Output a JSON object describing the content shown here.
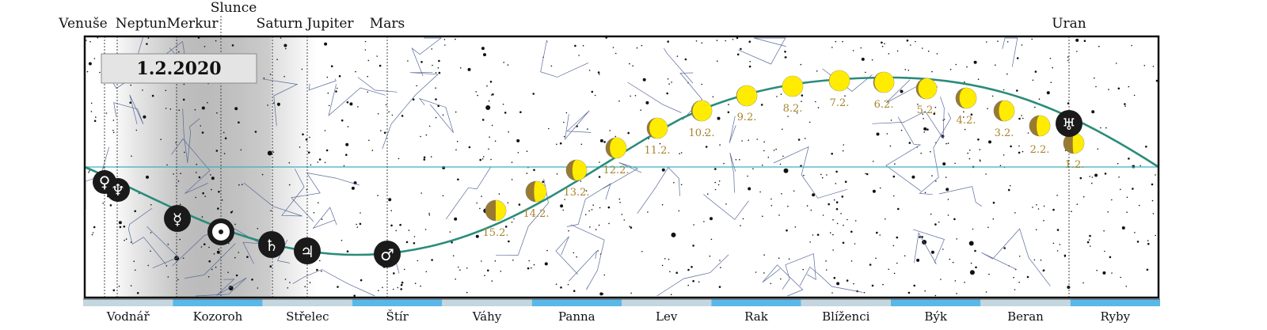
{
  "date": "1.2.2020",
  "colors": {
    "ecliptic": "#2a8c7a",
    "equator": "#3bb0c0",
    "moon_lit": "#ffec00",
    "moon_dark": "#9a7a2e",
    "date_text": "#a6842b",
    "zodiac_band_a": "#c4d6df",
    "zodiac_band_b": "#5ab8e8",
    "planet_fill": "#1a1a1a"
  },
  "planets": [
    {
      "name": "Venuše",
      "glyph": "♀"
    },
    {
      "name": "Neptun",
      "glyph": "♆"
    },
    {
      "name": "Merkur",
      "glyph": "☿"
    },
    {
      "name": "Slunce",
      "glyph": "☉"
    },
    {
      "name": "Saturn",
      "glyph": "♄"
    },
    {
      "name": "Jupiter",
      "glyph": "♃"
    },
    {
      "name": "Mars",
      "glyph": "♂"
    },
    {
      "name": "Uran",
      "glyph": "♅"
    }
  ],
  "moon_phases": [
    {
      "date": "1.2.",
      "illumination": 0.55
    },
    {
      "date": "2.2.",
      "illumination": 0.65
    },
    {
      "date": "3.2.",
      "illumination": 0.75
    },
    {
      "date": "4.2.",
      "illumination": 0.82
    },
    {
      "date": "5.2.",
      "illumination": 0.9
    },
    {
      "date": "6.2.",
      "illumination": 0.95
    },
    {
      "date": "7.2.",
      "illumination": 0.99
    },
    {
      "date": "8.2.",
      "illumination": 1.0
    },
    {
      "date": "9.2.",
      "illumination": 0.98
    },
    {
      "date": "10.2.",
      "illumination": 0.94
    },
    {
      "date": "11.2.",
      "illumination": 0.88
    },
    {
      "date": "12.2.",
      "illumination": 0.8
    },
    {
      "date": "13.2.",
      "illumination": 0.7
    },
    {
      "date": "14.2.",
      "illumination": 0.6
    },
    {
      "date": "15.2.",
      "illumination": 0.5
    }
  ],
  "zodiac": [
    "Vodnář",
    "Kozoroh",
    "Střelec",
    "Štír",
    "Váhy",
    "Panna",
    "Lev",
    "Rak",
    "Blíženci",
    "Býk",
    "Beran",
    "Ryby"
  ]
}
